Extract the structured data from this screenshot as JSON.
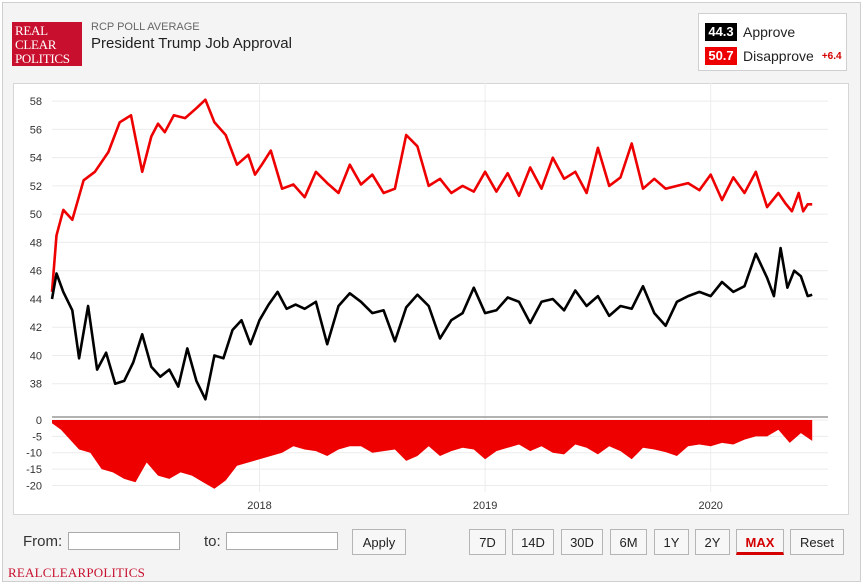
{
  "header": {
    "logo_lines": [
      "REAL",
      "CLEAR",
      "POLITICS"
    ],
    "supertitle": "RCP POLL AVERAGE",
    "title": "President Trump Job Approval"
  },
  "legend": {
    "approve": {
      "value": "44.3",
      "label": "Approve",
      "color": "#000000"
    },
    "disapprove": {
      "value": "50.7",
      "label": "Disapprove",
      "color": "#ee0000"
    },
    "spread": "+6.4"
  },
  "controls": {
    "from_label": "From:",
    "to_label": "to:",
    "from_value": "",
    "to_value": "",
    "apply_label": "Apply",
    "range_buttons": [
      "7D",
      "14D",
      "30D",
      "6M",
      "1Y",
      "2Y",
      "MAX"
    ],
    "active_range": "MAX",
    "reset_label": "Reset"
  },
  "footer": "REALCLEARPOLITICS",
  "chart_data": {
    "type": "line",
    "x_ticks": [
      2018,
      2019,
      2020
    ],
    "x_range": [
      2017.08,
      2020.52
    ],
    "top_panel": {
      "ylim": [
        36,
        59
      ],
      "y_ticks": [
        38,
        40,
        42,
        44,
        46,
        48,
        50,
        52,
        54,
        56,
        58
      ],
      "series": [
        {
          "name": "Disapprove",
          "color": "#ee0000",
          "x": [
            2017.08,
            2017.1,
            2017.13,
            2017.17,
            2017.22,
            2017.27,
            2017.33,
            2017.38,
            2017.43,
            2017.48,
            2017.52,
            2017.55,
            2017.58,
            2017.62,
            2017.67,
            2017.72,
            2017.76,
            2017.8,
            2017.85,
            2017.9,
            2017.95,
            2017.98,
            2018.01,
            2018.05,
            2018.1,
            2018.15,
            2018.2,
            2018.25,
            2018.3,
            2018.35,
            2018.4,
            2018.45,
            2018.5,
            2018.55,
            2018.6,
            2018.65,
            2018.7,
            2018.75,
            2018.8,
            2018.85,
            2018.9,
            2018.95,
            2019.0,
            2019.05,
            2019.1,
            2019.15,
            2019.2,
            2019.25,
            2019.3,
            2019.35,
            2019.4,
            2019.45,
            2019.5,
            2019.55,
            2019.6,
            2019.65,
            2019.7,
            2019.75,
            2019.8,
            2019.85,
            2019.9,
            2019.95,
            2020.0,
            2020.05,
            2020.1,
            2020.15,
            2020.2,
            2020.25,
            2020.3,
            2020.33,
            2020.36,
            2020.39,
            2020.41,
            2020.43,
            2020.45
          ],
          "values": [
            44.5,
            48.5,
            50.3,
            49.6,
            52.4,
            53.0,
            54.4,
            56.5,
            57.0,
            53.0,
            55.5,
            56.4,
            55.8,
            57.0,
            56.8,
            57.5,
            58.1,
            56.5,
            55.6,
            53.5,
            54.2,
            52.8,
            53.5,
            54.5,
            51.8,
            52.1,
            51.2,
            53.0,
            52.2,
            51.5,
            53.5,
            52.1,
            52.8,
            51.5,
            51.8,
            55.6,
            54.8,
            52.0,
            52.5,
            51.5,
            52.0,
            51.6,
            53.0,
            51.6,
            52.9,
            51.3,
            53.3,
            51.8,
            54.0,
            52.5,
            53.0,
            51.5,
            54.7,
            52.0,
            52.6,
            55.0,
            51.8,
            52.5,
            51.8,
            52.0,
            52.2,
            51.7,
            52.8,
            51.0,
            52.6,
            51.5,
            53.0,
            50.5,
            51.5,
            50.8,
            50.2,
            51.5,
            50.2,
            50.7,
            50.7
          ]
        },
        {
          "name": "Approve",
          "color": "#000000",
          "x": [
            2017.08,
            2017.1,
            2017.13,
            2017.17,
            2017.2,
            2017.24,
            2017.28,
            2017.32,
            2017.36,
            2017.4,
            2017.44,
            2017.48,
            2017.52,
            2017.56,
            2017.6,
            2017.64,
            2017.68,
            2017.72,
            2017.76,
            2017.8,
            2017.84,
            2017.88,
            2017.92,
            2017.96,
            2018.0,
            2018.04,
            2018.08,
            2018.12,
            2018.16,
            2018.2,
            2018.25,
            2018.3,
            2018.35,
            2018.4,
            2018.45,
            2018.5,
            2018.55,
            2018.6,
            2018.65,
            2018.7,
            2018.75,
            2018.8,
            2018.85,
            2018.9,
            2018.95,
            2019.0,
            2019.05,
            2019.1,
            2019.15,
            2019.2,
            2019.25,
            2019.3,
            2019.35,
            2019.4,
            2019.45,
            2019.5,
            2019.55,
            2019.6,
            2019.65,
            2019.7,
            2019.75,
            2019.8,
            2019.85,
            2019.9,
            2019.95,
            2020.0,
            2020.05,
            2020.1,
            2020.15,
            2020.2,
            2020.25,
            2020.28,
            2020.31,
            2020.34,
            2020.37,
            2020.4,
            2020.43,
            2020.45
          ],
          "values": [
            44.0,
            45.8,
            44.5,
            43.2,
            39.8,
            43.5,
            39.0,
            40.2,
            38.0,
            38.2,
            39.5,
            41.5,
            39.2,
            38.5,
            39.0,
            37.8,
            40.5,
            38.2,
            36.9,
            40.0,
            39.8,
            41.8,
            42.5,
            40.8,
            42.5,
            43.6,
            44.5,
            43.3,
            43.6,
            43.3,
            43.8,
            40.8,
            43.5,
            44.4,
            43.8,
            43.0,
            43.2,
            41.0,
            43.4,
            44.3,
            43.5,
            41.2,
            42.5,
            43.0,
            44.8,
            43.0,
            43.2,
            44.1,
            43.8,
            42.3,
            43.8,
            44.0,
            43.2,
            44.6,
            43.5,
            44.2,
            42.8,
            43.5,
            43.3,
            44.9,
            43.0,
            42.1,
            43.8,
            44.2,
            44.5,
            44.2,
            45.2,
            44.5,
            44.9,
            47.2,
            45.5,
            44.2,
            47.6,
            44.8,
            46.0,
            45.6,
            44.2,
            44.3
          ]
        }
      ]
    },
    "bottom_panel": {
      "ylim": [
        -22,
        0
      ],
      "y_ticks": [
        0,
        -5,
        -10,
        -15,
        -20
      ],
      "series": [
        {
          "name": "Spread",
          "type": "area",
          "color": "#ee0000",
          "x": [
            2017.08,
            2017.12,
            2017.16,
            2017.2,
            2017.25,
            2017.3,
            2017.35,
            2017.4,
            2017.45,
            2017.5,
            2017.55,
            2017.6,
            2017.65,
            2017.7,
            2017.75,
            2017.8,
            2017.85,
            2017.9,
            2017.95,
            2018.0,
            2018.05,
            2018.1,
            2018.15,
            2018.2,
            2018.25,
            2018.3,
            2018.35,
            2018.4,
            2018.45,
            2018.5,
            2018.55,
            2018.6,
            2018.65,
            2018.7,
            2018.75,
            2018.8,
            2018.85,
            2018.9,
            2018.95,
            2019.0,
            2019.05,
            2019.1,
            2019.15,
            2019.2,
            2019.25,
            2019.3,
            2019.35,
            2019.4,
            2019.45,
            2019.5,
            2019.55,
            2019.6,
            2019.65,
            2019.7,
            2019.75,
            2019.8,
            2019.85,
            2019.9,
            2019.95,
            2020.0,
            2020.05,
            2020.1,
            2020.15,
            2020.2,
            2020.25,
            2020.3,
            2020.35,
            2020.4,
            2020.45
          ],
          "values": [
            -1.0,
            -3.0,
            -6.0,
            -9.0,
            -10.0,
            -15.0,
            -16.0,
            -18.0,
            -19.0,
            -13.0,
            -17.0,
            -18.0,
            -16.0,
            -17.0,
            -19.0,
            -21.0,
            -18.5,
            -14.0,
            -13.0,
            -12.0,
            -11.0,
            -10.0,
            -8.0,
            -9.0,
            -9.5,
            -11.0,
            -9.0,
            -8.0,
            -8.0,
            -10.0,
            -9.5,
            -9.0,
            -12.5,
            -11.0,
            -8.0,
            -11.0,
            -9.5,
            -8.5,
            -9.0,
            -12.0,
            -9.5,
            -8.5,
            -7.5,
            -9.5,
            -8.0,
            -10.0,
            -10.5,
            -7.5,
            -8.5,
            -10.5,
            -8.0,
            -9.5,
            -12.0,
            -8.5,
            -9.0,
            -9.8,
            -11.0,
            -8.0,
            -7.5,
            -8.0,
            -7.0,
            -7.5,
            -6.0,
            -5.0,
            -5.0,
            -3.0,
            -7.0,
            -4.0,
            -6.4
          ]
        }
      ]
    }
  }
}
